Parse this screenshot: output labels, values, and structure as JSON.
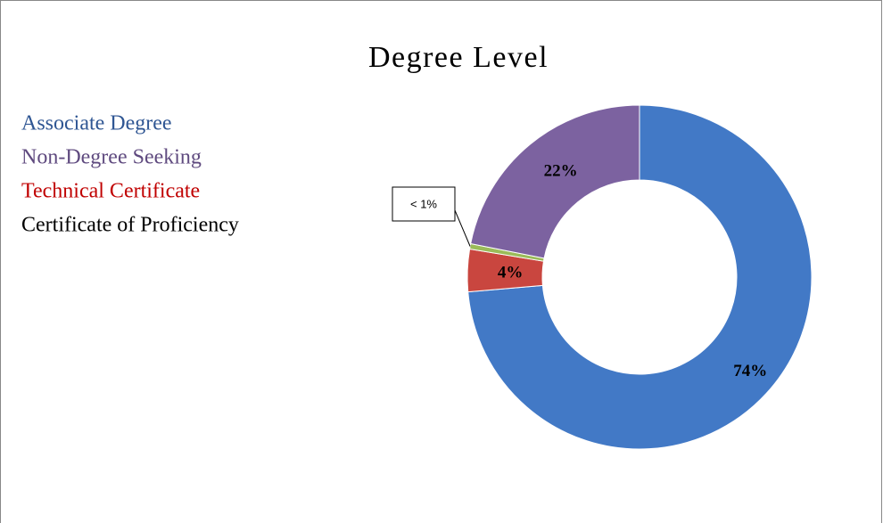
{
  "chart_data": {
    "type": "donut",
    "title": "Degree Level",
    "categories": [
      "Associate Degree",
      "Technical Certificate",
      "Certificate of Proficiency",
      "Non-Degree Seeking"
    ],
    "values": [
      74,
      4,
      0.5,
      22
    ],
    "value_labels": [
      "74%",
      "4%",
      "< 1%",
      "22%"
    ],
    "colors": [
      "#4279c6",
      "#c9463f",
      "#9bbb59",
      "#7c62a0"
    ],
    "legend_colors": [
      "#2f5693",
      "#c00000",
      "#000000",
      "#5f4a7f"
    ]
  }
}
